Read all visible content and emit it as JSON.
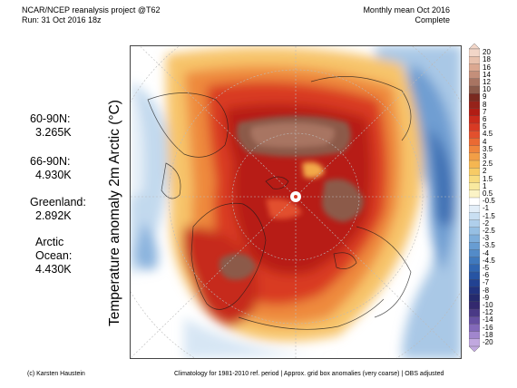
{
  "header": {
    "title_line1": "NCAR/NCEP reanalysis project @T62",
    "title_line2": "Run: 31 Oct 2016 18z",
    "right_line1": "Monthly mean Oct 2016",
    "right_line2": "Complete"
  },
  "stats": [
    {
      "label": "60-90N:",
      "value": "3.265K"
    },
    {
      "label": "66-90N:",
      "value": "4.930K"
    },
    {
      "label": "Greenland:",
      "value": "2.892K"
    },
    {
      "label_line1": "Arctic",
      "label_line2": "Ocean:",
      "value": "4.430K"
    }
  ],
  "ylabel": "Temperature anomaly 2m Arctic (°C)",
  "colorbar": {
    "ticks": [
      "20",
      "18",
      "16",
      "14",
      "12",
      "10",
      "9",
      "8",
      "7",
      "6",
      "5",
      "4.5",
      "4",
      "3.5",
      "3",
      "2.5",
      "2",
      "1.5",
      "1",
      "0.5",
      "-0.5",
      "-1",
      "-1.5",
      "-2",
      "-2.5",
      "-3",
      "-3.5",
      "-4",
      "-4.5",
      "-5",
      "-6",
      "-7",
      "-8",
      "-9",
      "-10",
      "-12",
      "-14",
      "-16",
      "-18",
      "-20"
    ],
    "colors": [
      "#f2d6c8",
      "#e8c1ad",
      "#dba891",
      "#c48f7a",
      "#a87462",
      "#8c5a4a",
      "#7a2a20",
      "#96231a",
      "#b11d14",
      "#c92b1c",
      "#d83a24",
      "#e2502d",
      "#ea6a33",
      "#ef853c",
      "#f29e46",
      "#f5b651",
      "#f7cb66",
      "#f8dc80",
      "#f9e99f",
      "#fbf3c6",
      "#ffffff",
      "#e3eef8",
      "#c9dff2",
      "#afcfeb",
      "#96bfe3",
      "#7eaedb",
      "#689dd2",
      "#538bc8",
      "#4079bd",
      "#3166b1",
      "#2754a3",
      "#224292",
      "#22337f",
      "#252a6d",
      "#33296e",
      "#4a3a86",
      "#6650a1",
      "#8369b9",
      "#a186cd",
      "#c1a8df"
    ]
  },
  "footer": {
    "left": "(c) Karsten Haustein",
    "right": "Climatology for 1981-2010 ref. period | Approx. grid box anomalies (very coarse) | OBS adjusted"
  }
}
